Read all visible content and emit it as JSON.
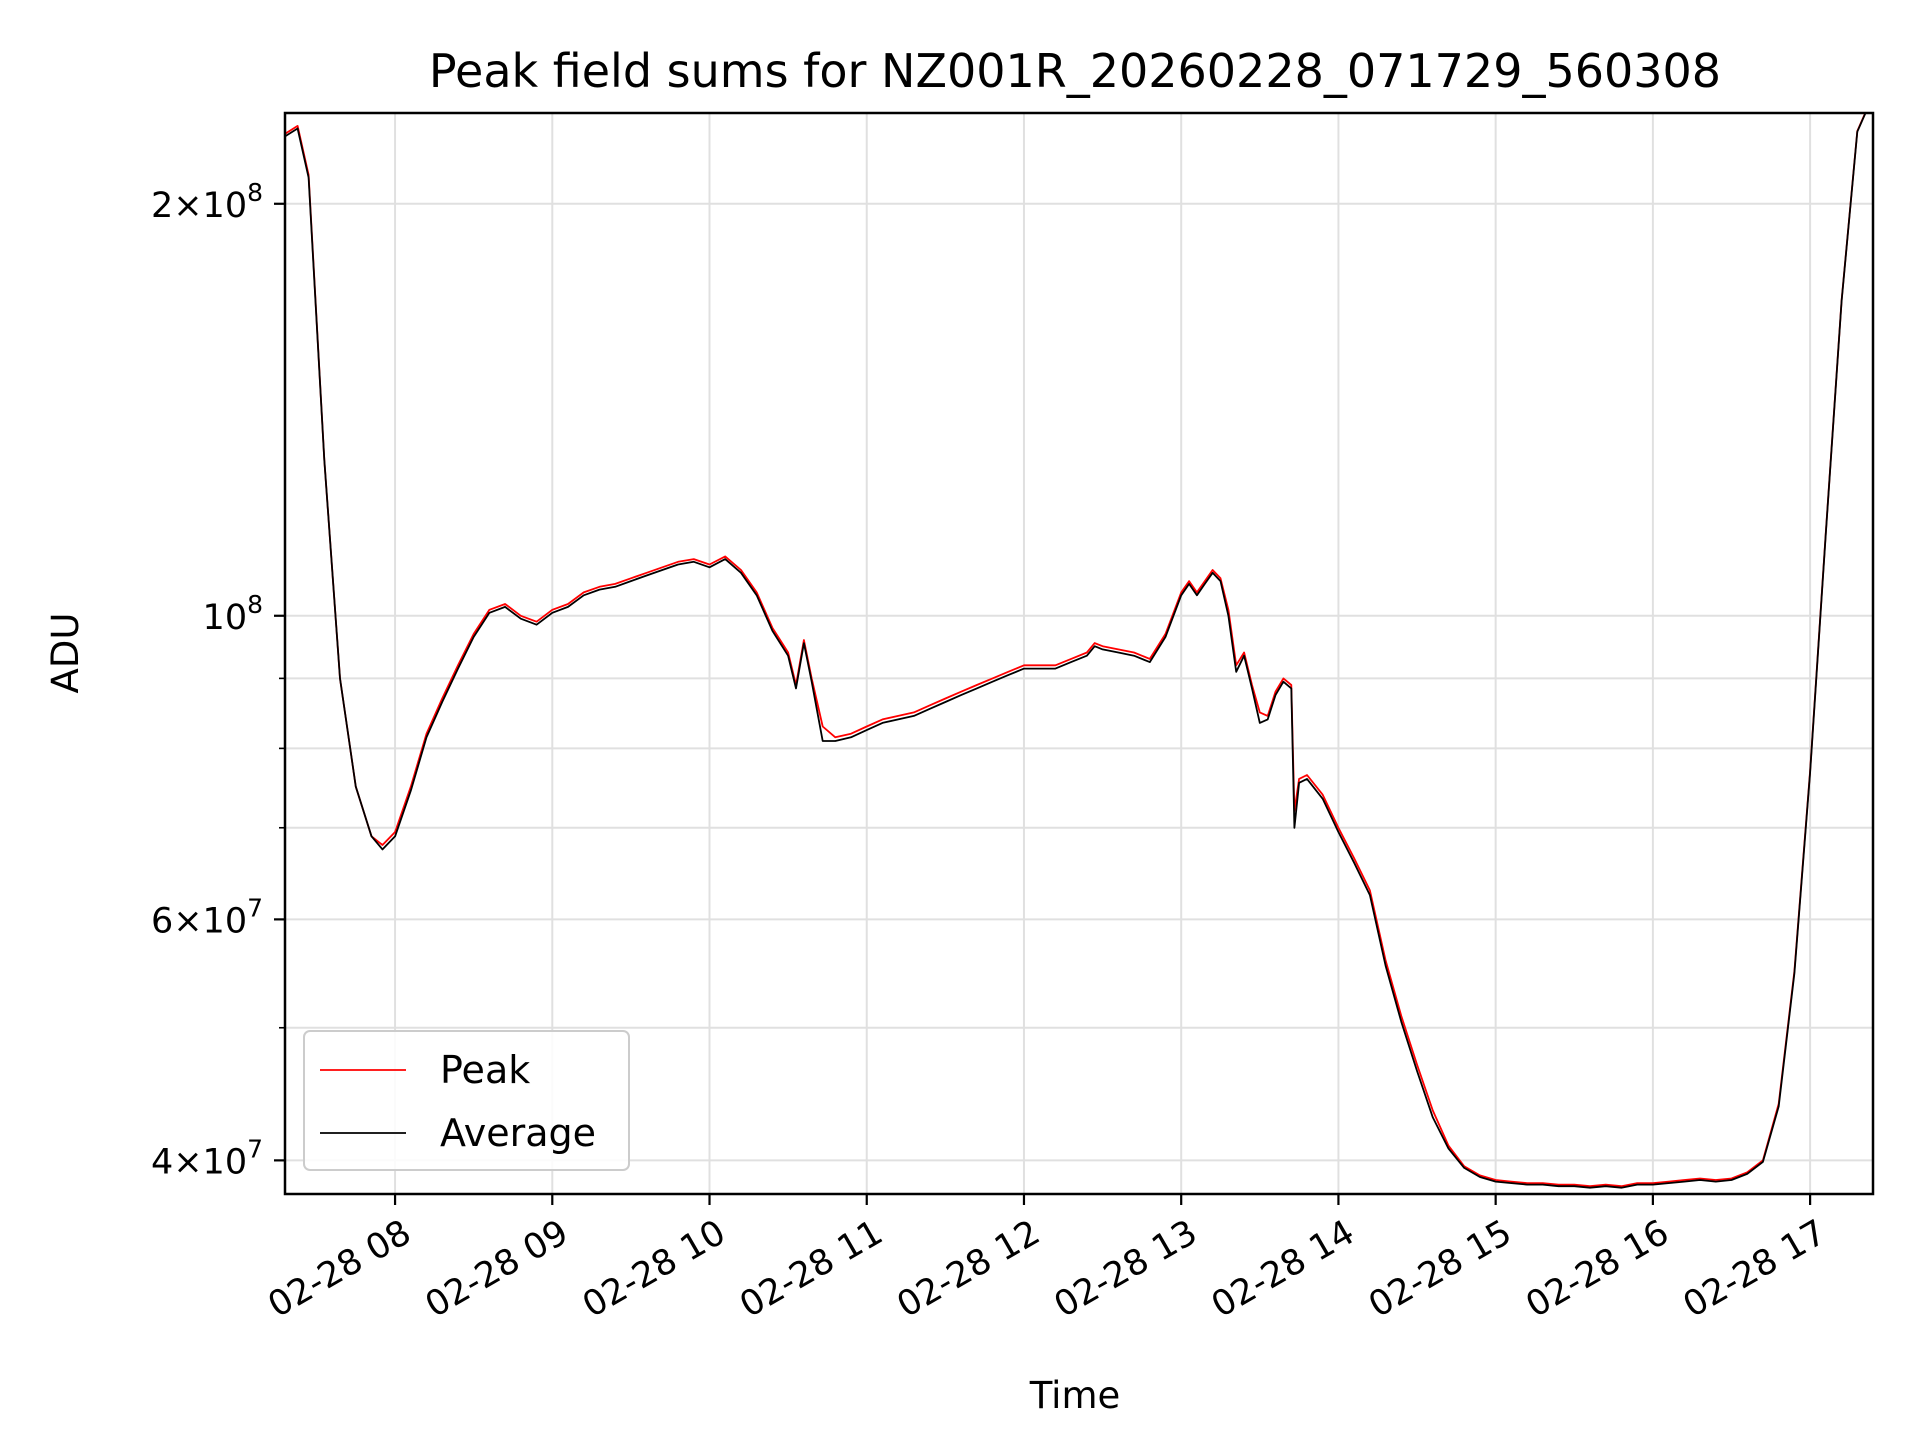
{
  "chart_data": {
    "type": "line",
    "title": "Peak field sums for NZ001R_20260228_071729_560308",
    "xlabel": "Time",
    "ylabel": "ADU",
    "x_unit": "time of day (hours), date 02-28",
    "xlim": [
      7.3,
      17.4
    ],
    "ylim": [
      37800000,
      233000000
    ],
    "y_scale": "log",
    "grid": true,
    "legend_position": "lower left",
    "x_ticks": [
      {
        "value": 8,
        "label": "02-28 08"
      },
      {
        "value": 9,
        "label": "02-28 09"
      },
      {
        "value": 10,
        "label": "02-28 10"
      },
      {
        "value": 11,
        "label": "02-28 11"
      },
      {
        "value": 12,
        "label": "02-28 12"
      },
      {
        "value": 13,
        "label": "02-28 13"
      },
      {
        "value": 14,
        "label": "02-28 14"
      },
      {
        "value": 15,
        "label": "02-28 15"
      },
      {
        "value": 16,
        "label": "02-28 16"
      },
      {
        "value": 17,
        "label": "02-28 17"
      }
    ],
    "y_major_ticks": [
      {
        "value": 40000000,
        "mantissa": "4",
        "exponent": "7"
      },
      {
        "value": 60000000,
        "mantissa": "6",
        "exponent": "7"
      },
      {
        "value": 100000000,
        "mantissa": "",
        "exponent": "8"
      },
      {
        "value": 200000000,
        "mantissa": "2",
        "exponent": "8"
      }
    ],
    "y_minor_ticks": [
      50000000,
      70000000,
      80000000,
      90000000
    ],
    "series": [
      {
        "name": "Peak",
        "color": "#ff0000",
        "x": [
          7.3,
          7.38,
          7.45,
          7.55,
          7.65,
          7.75,
          7.85,
          7.92,
          8.0,
          8.1,
          8.2,
          8.3,
          8.4,
          8.5,
          8.6,
          8.7,
          8.8,
          8.9,
          9.0,
          9.1,
          9.2,
          9.3,
          9.4,
          9.5,
          9.6,
          9.7,
          9.8,
          9.9,
          10.0,
          10.1,
          10.2,
          10.3,
          10.4,
          10.5,
          10.55,
          10.6,
          10.65,
          10.72,
          10.8,
          10.9,
          11.0,
          11.1,
          11.2,
          11.3,
          11.4,
          11.5,
          11.6,
          11.7,
          11.8,
          11.9,
          12.0,
          12.1,
          12.2,
          12.3,
          12.4,
          12.45,
          12.5,
          12.6,
          12.7,
          12.8,
          12.9,
          13.0,
          13.05,
          13.1,
          13.15,
          13.2,
          13.25,
          13.3,
          13.35,
          13.4,
          13.45,
          13.5,
          13.55,
          13.6,
          13.65,
          13.7,
          13.72,
          13.75,
          13.8,
          13.9,
          14.0,
          14.1,
          14.2,
          14.3,
          14.4,
          14.5,
          14.6,
          14.7,
          14.8,
          14.9,
          15.0,
          15.1,
          15.2,
          15.3,
          15.4,
          15.5,
          15.6,
          15.7,
          15.8,
          15.9,
          16.0,
          16.1,
          16.2,
          16.3,
          16.4,
          16.5,
          16.6,
          16.7,
          16.8,
          16.9,
          17.0,
          17.1,
          17.2,
          17.3,
          17.4
        ],
        "y": [
          225000000,
          228000000,
          210000000,
          130000000,
          90000000,
          75000000,
          69000000,
          68000000,
          69500000,
          75000000,
          82000000,
          87000000,
          92000000,
          97000000,
          101000000,
          102000000,
          100000000,
          99000000,
          101000000,
          102000000,
          104000000,
          105000000,
          105500000,
          106500000,
          107500000,
          108500000,
          109500000,
          110000000,
          109000000,
          110500000,
          108000000,
          104000000,
          98000000,
          94000000,
          89000000,
          96000000,
          90000000,
          83000000,
          81500000,
          82000000,
          83000000,
          84000000,
          84500000,
          85000000,
          86000000,
          87000000,
          88000000,
          89000000,
          90000000,
          91000000,
          92000000,
          92000000,
          92000000,
          93000000,
          94000000,
          95500000,
          95000000,
          94500000,
          94000000,
          93000000,
          97000000,
          104000000,
          106000000,
          104000000,
          106000000,
          108000000,
          106500000,
          101000000,
          92000000,
          94000000,
          89000000,
          85000000,
          84500000,
          88000000,
          90000000,
          89000000,
          72000000,
          76000000,
          76500000,
          74000000,
          70000000,
          66500000,
          63000000,
          56000000,
          51000000,
          47000000,
          43500000,
          41000000,
          39600000,
          39000000,
          38700000,
          38600000,
          38500000,
          38500000,
          38400000,
          38400000,
          38300000,
          38400000,
          38300000,
          38500000,
          38500000,
          38600000,
          38700000,
          38800000,
          38700000,
          38800000,
          39200000,
          40000000,
          44000000,
          55000000,
          77000000,
          115000000,
          170000000,
          226000000,
          240000000
        ]
      },
      {
        "name": "Average",
        "color": "#000000",
        "x": [
          7.3,
          7.38,
          7.45,
          7.55,
          7.65,
          7.75,
          7.85,
          7.92,
          8.0,
          8.1,
          8.2,
          8.3,
          8.4,
          8.5,
          8.6,
          8.7,
          8.8,
          8.9,
          9.0,
          9.1,
          9.2,
          9.3,
          9.4,
          9.5,
          9.6,
          9.7,
          9.8,
          9.9,
          10.0,
          10.1,
          10.2,
          10.3,
          10.4,
          10.5,
          10.55,
          10.6,
          10.65,
          10.72,
          10.8,
          10.9,
          11.0,
          11.1,
          11.2,
          11.3,
          11.4,
          11.5,
          11.6,
          11.7,
          11.8,
          11.9,
          12.0,
          12.1,
          12.2,
          12.3,
          12.4,
          12.45,
          12.5,
          12.6,
          12.7,
          12.8,
          12.9,
          13.0,
          13.05,
          13.1,
          13.15,
          13.2,
          13.25,
          13.3,
          13.35,
          13.4,
          13.45,
          13.5,
          13.55,
          13.6,
          13.65,
          13.7,
          13.72,
          13.75,
          13.8,
          13.9,
          14.0,
          14.1,
          14.2,
          14.3,
          14.4,
          14.5,
          14.6,
          14.7,
          14.8,
          14.9,
          15.0,
          15.1,
          15.2,
          15.3,
          15.4,
          15.5,
          15.6,
          15.7,
          15.8,
          15.9,
          16.0,
          16.1,
          16.2,
          16.3,
          16.4,
          16.5,
          16.6,
          16.7,
          16.8,
          16.9,
          17.0,
          17.1,
          17.2,
          17.3,
          17.4
        ],
        "y": [
          224000000,
          227000000,
          209000000,
          130000000,
          90000000,
          75000000,
          69000000,
          67500000,
          69000000,
          74500000,
          81500000,
          86500000,
          91500000,
          96500000,
          100500000,
          101500000,
          99500000,
          98500000,
          100500000,
          101500000,
          103500000,
          104500000,
          105000000,
          106000000,
          107000000,
          108000000,
          109000000,
          109500000,
          108500000,
          110000000,
          107500000,
          103500000,
          97500000,
          93500000,
          88500000,
          95500000,
          89500000,
          81000000,
          81000000,
          81500000,
          82500000,
          83500000,
          84000000,
          84500000,
          85500000,
          86500000,
          87500000,
          88500000,
          89500000,
          90500000,
          91500000,
          91500000,
          91500000,
          92500000,
          93500000,
          95000000,
          94500000,
          94000000,
          93500000,
          92500000,
          96500000,
          103500000,
          105500000,
          103500000,
          105500000,
          107500000,
          106000000,
          100000000,
          91000000,
          93500000,
          88500000,
          83500000,
          84000000,
          87500000,
          89500000,
          88500000,
          70000000,
          75500000,
          76000000,
          73500000,
          69500000,
          66000000,
          62500000,
          55500000,
          50500000,
          46500000,
          43000000,
          40800000,
          39500000,
          38900000,
          38600000,
          38500000,
          38400000,
          38400000,
          38300000,
          38300000,
          38200000,
          38300000,
          38200000,
          38400000,
          38400000,
          38500000,
          38600000,
          38700000,
          38600000,
          38700000,
          39100000,
          39900000,
          43800000,
          54800000,
          76800000,
          114800000,
          169800000,
          225800000,
          239800000
        ]
      }
    ]
  }
}
